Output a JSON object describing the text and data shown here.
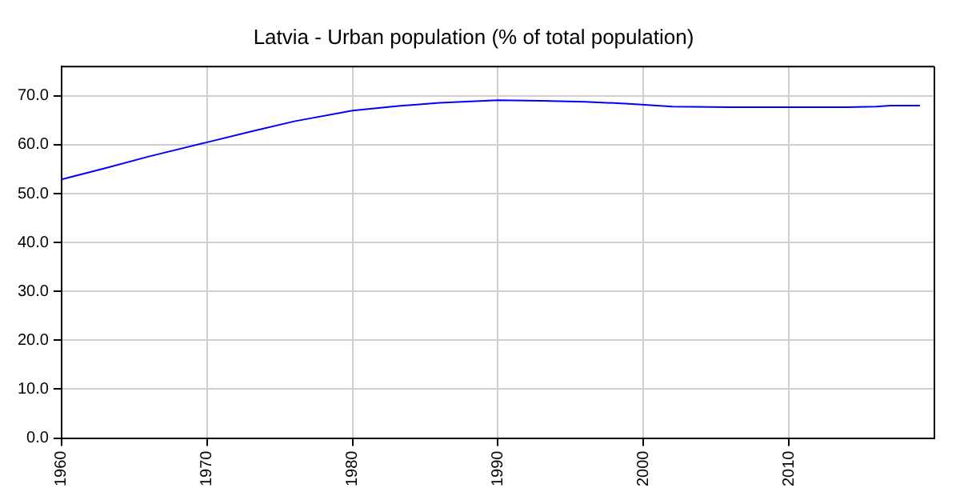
{
  "chart_data": {
    "type": "line",
    "title": "Latvia - Urban population (% of total population)",
    "x": [
      1960,
      1963,
      1966,
      1970,
      1973,
      1976,
      1980,
      1983,
      1986,
      1990,
      1993,
      1996,
      1999,
      2002,
      2006,
      2010,
      2014,
      2016,
      2017,
      2019
    ],
    "series": [
      {
        "color": "#0000ff",
        "values": [
          52.9,
          55.2,
          57.6,
          60.5,
          62.7,
          64.8,
          67.0,
          67.9,
          68.6,
          69.1,
          69.0,
          68.8,
          68.4,
          67.8,
          67.7,
          67.7,
          67.7,
          67.8,
          68.0,
          68.0
        ]
      }
    ],
    "xlim": [
      1960,
      2020
    ],
    "xticks": [
      1960,
      1970,
      1980,
      1990,
      2000,
      2010
    ],
    "ylim": [
      0,
      76
    ],
    "yticks": [
      {
        "value": 0,
        "label": "0.0"
      },
      {
        "value": 10,
        "label": "10.0"
      },
      {
        "value": 20,
        "label": "20.0"
      },
      {
        "value": 30,
        "label": "30.0"
      },
      {
        "value": 40,
        "label": "40.0"
      },
      {
        "value": 50,
        "label": "50.0"
      },
      {
        "value": 60,
        "label": "60.0"
      },
      {
        "value": 70,
        "label": "70.0"
      }
    ],
    "grid": true,
    "legend": false,
    "marker": "none",
    "line_style": "solid"
  }
}
